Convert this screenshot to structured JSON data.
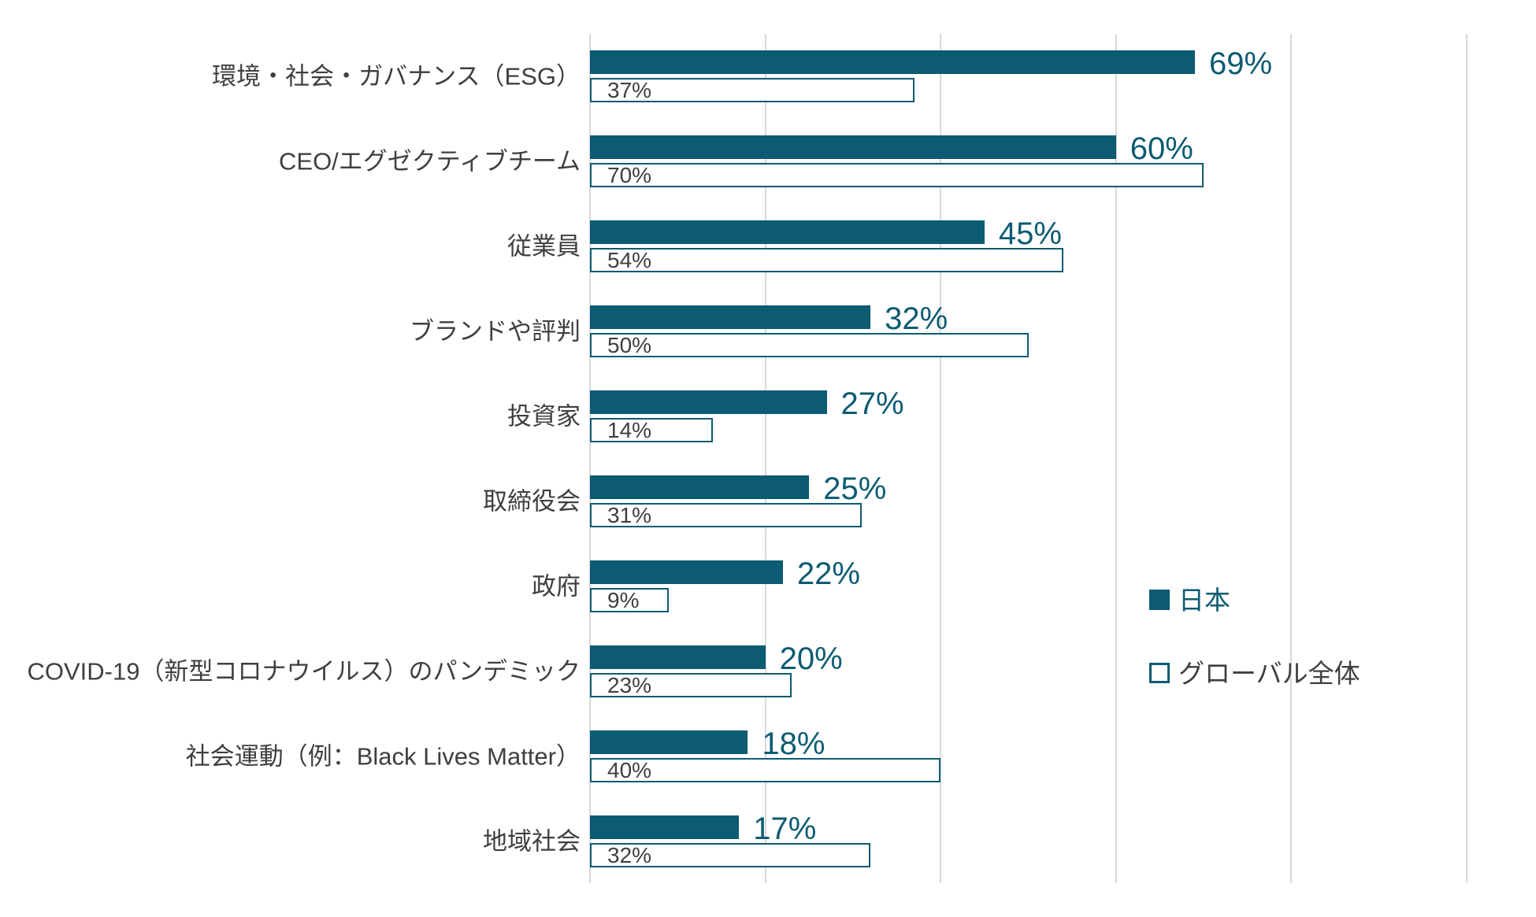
{
  "chart_data": {
    "type": "bar",
    "orientation": "horizontal",
    "title": "",
    "categories": [
      "環境・社会・ガバナンス（ESG）",
      "CEO/エグゼクティブチーム",
      "従業員",
      "ブランドや評判",
      "投資家",
      "取締役会",
      "政府",
      "COVID-19（新型コロナウイルス）のパンデミック",
      "社会運動（例：Black Lives Matter）",
      "地域社会"
    ],
    "series": [
      {
        "name": "日本",
        "style": "solid",
        "values": [
          69,
          60,
          45,
          32,
          27,
          25,
          22,
          20,
          18,
          17
        ],
        "labels": [
          "69%",
          "60%",
          "45%",
          "32%",
          "27%",
          "25%",
          "22%",
          "20%",
          "18%",
          "17%"
        ]
      },
      {
        "name": "グローバル全体",
        "style": "outline",
        "values": [
          37,
          70,
          54,
          50,
          14,
          31,
          9,
          23,
          40,
          32
        ],
        "labels": [
          "37%",
          "70%",
          "54%",
          "50%",
          "14%",
          "31%",
          "9%",
          "23%",
          "40%",
          "32%"
        ]
      }
    ],
    "axis": {
      "x_min": 0,
      "x_max": 100,
      "gridline_step": 20,
      "tick_labels_visible": false,
      "unit": "%"
    },
    "legend": {
      "position": "right",
      "entries": [
        "日本",
        "グローバル全体"
      ]
    },
    "colors": {
      "teal": "#0C5B72",
      "label_text": "#3F3F3F",
      "gridline": "#D9D9D9",
      "background": "#FFFFFF"
    }
  }
}
